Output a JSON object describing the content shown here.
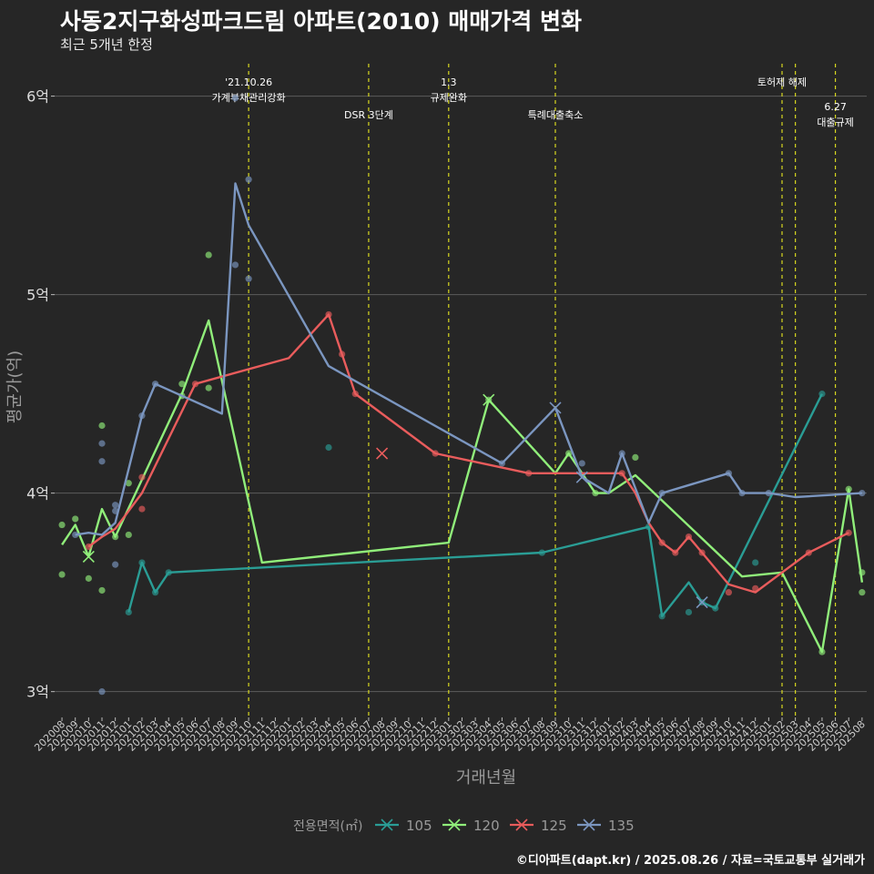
{
  "chart_data": {
    "type": "line",
    "title": "사동2지구화성파크드림 아파트(2010) 매매가격 변화",
    "subtitle": "최근 5개년 한정",
    "xlabel": "거래년월",
    "ylabel": "평균가(억)",
    "caption": "©디아파트(dapt.kr) / 2025.08.26 / 자료=국토교통부 실거래가",
    "legend_title": "전용면적(㎡)",
    "legend_position": "bottom",
    "ylim": [
      2.87,
      6.2
    ],
    "yticks": [
      3,
      4,
      5,
      6
    ],
    "ytick_labels": [
      "3억",
      "4억",
      "5억",
      "6억"
    ],
    "x_categories": [
      "202008",
      "202009",
      "202010",
      "202011",
      "202012",
      "202101",
      "202102",
      "202103",
      "202104",
      "202105",
      "202106",
      "202107",
      "202108",
      "202109",
      "202110",
      "202111",
      "202112",
      "202201",
      "202202",
      "202203",
      "202204",
      "202205",
      "202206",
      "202207",
      "202208",
      "202209",
      "202210",
      "202211",
      "202212",
      "202301",
      "202302",
      "202303",
      "202304",
      "202305",
      "202306",
      "202307",
      "202308",
      "202309",
      "202310",
      "202311",
      "202312",
      "202401",
      "202402",
      "202403",
      "202404",
      "202405",
      "202406",
      "202407",
      "202408",
      "202409",
      "202410",
      "202411",
      "202412",
      "202501",
      "202502",
      "202503",
      "202504",
      "202505",
      "202506",
      "202507",
      "202508"
    ],
    "annotations": [
      {
        "x": "202110",
        "lines": [
          "'21.10.26",
          "가계부채관리강화"
        ],
        "row": 1
      },
      {
        "x": "202207",
        "lines": [
          "DSR 3단계"
        ],
        "row": 2
      },
      {
        "x": "202301",
        "lines": [
          "1.3",
          "규제완화"
        ],
        "row": 1
      },
      {
        "x": "202309",
        "lines": [
          "특례대출축소"
        ],
        "row": 2
      },
      {
        "x": "202502",
        "lines": [
          "토허제 해제"
        ],
        "row": 1,
        "tail": "202503"
      },
      {
        "x": "202506",
        "lines": [
          "6.27",
          "대출규제"
        ],
        "row": 3
      }
    ],
    "series": [
      {
        "name": "105",
        "color": "#2a9d95",
        "line": [
          [
            "202101",
            3.4
          ],
          [
            "202102",
            3.65
          ],
          [
            "202103",
            3.5
          ],
          [
            "202104",
            3.6
          ],
          [
            "202308",
            3.7
          ],
          [
            "202404",
            3.83
          ],
          [
            "202405",
            3.38
          ],
          [
            "202407",
            3.55
          ],
          [
            "202408",
            3.45
          ],
          [
            "202409",
            3.42
          ],
          [
            "202505",
            4.5
          ]
        ],
        "points": [
          [
            "202101",
            3.4
          ],
          [
            "202102",
            3.65
          ],
          [
            "202103",
            3.5
          ],
          [
            "202104",
            3.6
          ],
          [
            "202204",
            4.23
          ],
          [
            "202308",
            3.7
          ],
          [
            "202404",
            3.83
          ],
          [
            "202405",
            3.38
          ],
          [
            "202407",
            3.4
          ],
          [
            "202408",
            3.45
          ],
          [
            "202409",
            3.42
          ],
          [
            "202412",
            3.65
          ],
          [
            "202505",
            4.5
          ]
        ],
        "crosses": []
      },
      {
        "name": "120",
        "color": "#90ee7a",
        "line": [
          [
            "202008",
            3.74
          ],
          [
            "202009",
            3.84
          ],
          [
            "202010",
            3.68
          ],
          [
            "202011",
            3.92
          ],
          [
            "202012",
            3.78
          ],
          [
            "202105",
            4.5
          ],
          [
            "202107",
            4.87
          ],
          [
            "202111",
            3.65
          ],
          [
            "202301",
            3.75
          ],
          [
            "202304",
            4.47
          ],
          [
            "202309",
            4.1
          ],
          [
            "202310",
            4.2
          ],
          [
            "202311",
            4.1
          ],
          [
            "202312",
            4.0
          ],
          [
            "202401",
            4.0
          ],
          [
            "202403",
            4.09
          ],
          [
            "202411",
            3.58
          ],
          [
            "202502",
            3.6
          ],
          [
            "202505",
            3.2
          ],
          [
            "202507",
            4.02
          ],
          [
            "202508",
            3.55
          ]
        ],
        "points": [
          [
            "202008",
            3.84
          ],
          [
            "202008",
            3.59
          ],
          [
            "202009",
            3.87
          ],
          [
            "202010",
            3.57
          ],
          [
            "202011",
            4.34
          ],
          [
            "202011",
            3.51
          ],
          [
            "202012",
            3.78
          ],
          [
            "202101",
            4.05
          ],
          [
            "202101",
            3.79
          ],
          [
            "202105",
            4.55
          ],
          [
            "202105",
            4.49
          ],
          [
            "202107",
            5.2
          ],
          [
            "202107",
            4.53
          ],
          [
            "202304",
            4.47
          ],
          [
            "202310",
            4.2
          ],
          [
            "202312",
            4.0
          ],
          [
            "202403",
            4.18
          ],
          [
            "202505",
            3.2
          ],
          [
            "202507",
            4.02
          ],
          [
            "202508",
            3.6
          ],
          [
            "202508",
            3.5
          ]
        ],
        "crosses": [
          [
            "202010",
            3.68
          ],
          [
            "202304",
            4.47
          ]
        ]
      },
      {
        "name": "125",
        "color": "#e95c5c",
        "line": [
          [
            "202010",
            3.73
          ],
          [
            "202011",
            3.78
          ],
          [
            "202012",
            3.82
          ],
          [
            "202102",
            4.0
          ],
          [
            "202106",
            4.55
          ],
          [
            "202201",
            4.68
          ],
          [
            "202204",
            4.9
          ],
          [
            "202205",
            4.7
          ],
          [
            "202206",
            4.5
          ],
          [
            "202212",
            4.2
          ],
          [
            "202307",
            4.1
          ],
          [
            "202402",
            4.1
          ],
          [
            "202403",
            4.0
          ],
          [
            "202404",
            3.85
          ],
          [
            "202405",
            3.75
          ],
          [
            "202406",
            3.7
          ],
          [
            "202407",
            3.78
          ],
          [
            "202408",
            3.7
          ],
          [
            "202410",
            3.54
          ],
          [
            "202412",
            3.5
          ],
          [
            "202502",
            3.6
          ],
          [
            "202504",
            3.7
          ],
          [
            "202507",
            3.8
          ]
        ],
        "points": [
          [
            "202010",
            3.73
          ],
          [
            "202102",
            4.08
          ],
          [
            "202102",
            3.92
          ],
          [
            "202106",
            4.55
          ],
          [
            "202204",
            4.9
          ],
          [
            "202205",
            4.7
          ],
          [
            "202206",
            4.5
          ],
          [
            "202212",
            4.2
          ],
          [
            "202307",
            4.1
          ],
          [
            "202402",
            4.1
          ],
          [
            "202405",
            3.75
          ],
          [
            "202406",
            3.7
          ],
          [
            "202407",
            3.78
          ],
          [
            "202408",
            3.7
          ],
          [
            "202410",
            3.5
          ],
          [
            "202412",
            3.52
          ],
          [
            "202504",
            3.7
          ],
          [
            "202507",
            3.8
          ]
        ],
        "crosses": [
          [
            "202208",
            4.2
          ]
        ]
      },
      {
        "name": "135",
        "color": "#7b96c0",
        "line": [
          [
            "202009",
            3.79
          ],
          [
            "202010",
            3.8
          ],
          [
            "202011",
            3.79
          ],
          [
            "202012",
            3.85
          ],
          [
            "202102",
            4.39
          ],
          [
            "202103",
            4.55
          ],
          [
            "202108",
            4.4
          ],
          [
            "202109",
            5.56
          ],
          [
            "202110",
            5.35
          ],
          [
            "202204",
            4.64
          ],
          [
            "202305",
            4.15
          ],
          [
            "202309",
            4.43
          ],
          [
            "202311",
            4.08
          ],
          [
            "202401",
            4.0
          ],
          [
            "202402",
            4.2
          ],
          [
            "202404",
            3.85
          ],
          [
            "202405",
            4.0
          ],
          [
            "202410",
            4.1
          ],
          [
            "202411",
            4.0
          ],
          [
            "202501",
            4.0
          ],
          [
            "202503",
            3.98
          ],
          [
            "202508",
            4.0
          ]
        ],
        "points": [
          [
            "202009",
            3.79
          ],
          [
            "202011",
            4.25
          ],
          [
            "202011",
            4.16
          ],
          [
            "202012",
            3.94
          ],
          [
            "202012",
            3.91
          ],
          [
            "202012",
            3.64
          ],
          [
            "202011",
            3.0
          ],
          [
            "202102",
            4.39
          ],
          [
            "202103",
            4.55
          ],
          [
            "202109",
            5.99
          ],
          [
            "202109",
            5.15
          ],
          [
            "202110",
            5.58
          ],
          [
            "202110",
            5.08
          ],
          [
            "202305",
            4.15
          ],
          [
            "202311",
            4.15
          ],
          [
            "202402",
            4.2
          ],
          [
            "202405",
            4.0
          ],
          [
            "202410",
            4.1
          ],
          [
            "202411",
            4.0
          ],
          [
            "202501",
            4.0
          ],
          [
            "202508",
            4.0
          ]
        ],
        "crosses": [
          [
            "202309",
            4.43
          ],
          [
            "202311",
            4.08
          ],
          [
            "202408",
            3.45
          ]
        ]
      }
    ]
  }
}
